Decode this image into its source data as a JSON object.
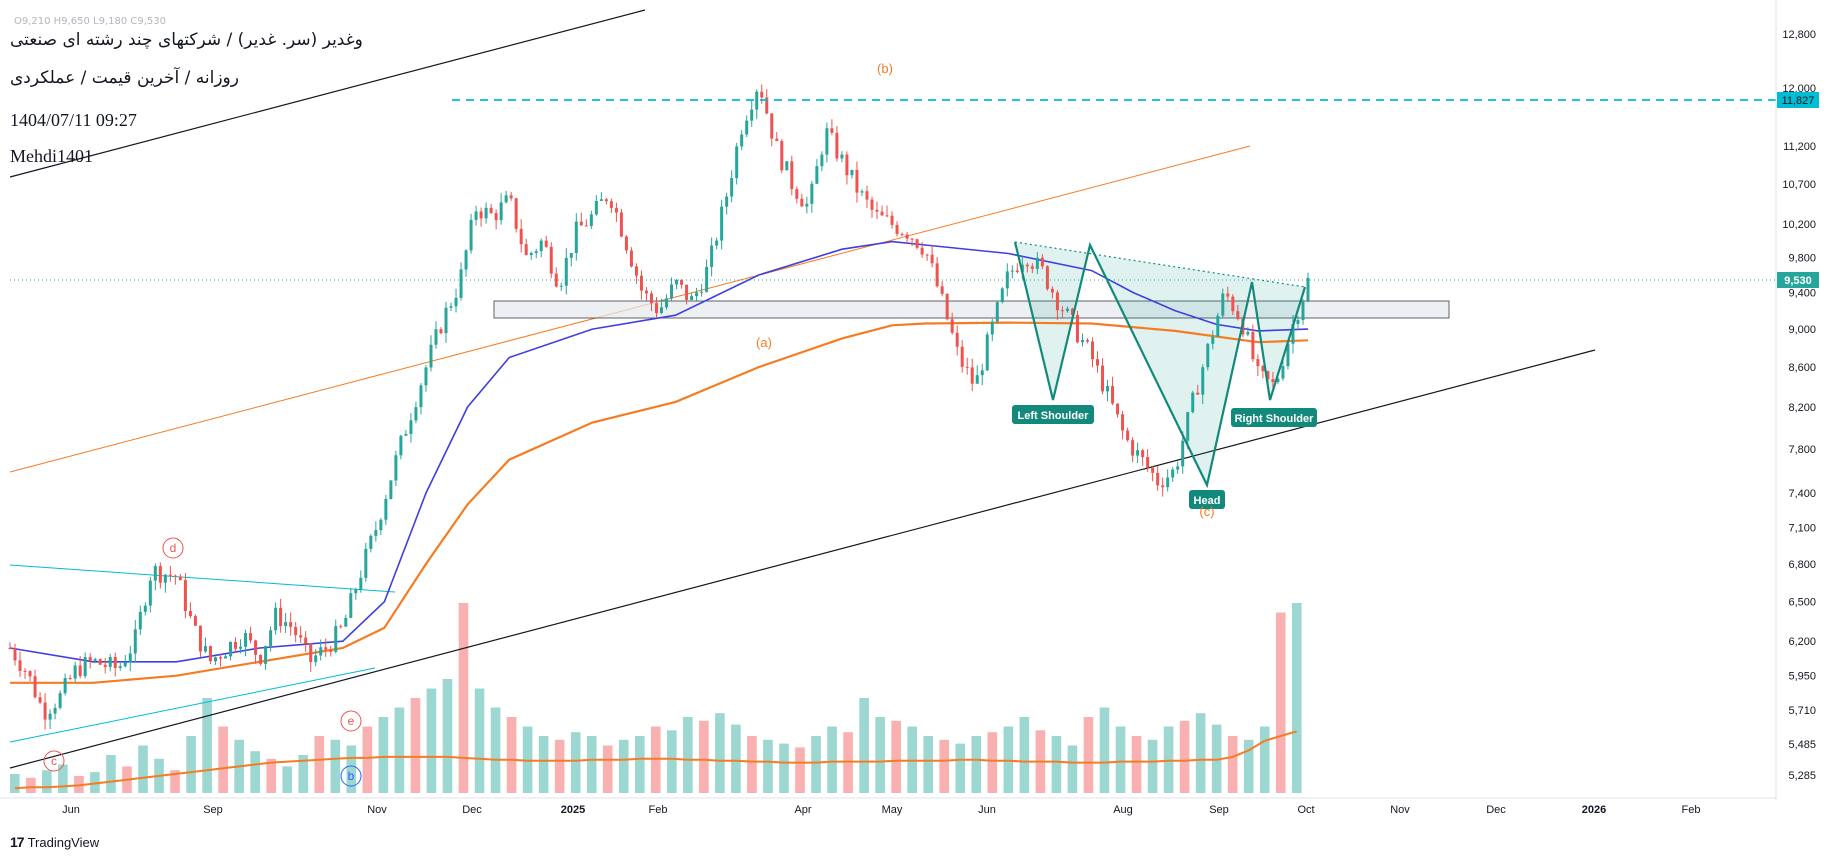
{
  "header": {
    "ohlc_text": "O9,210  H9,650  L9,180  C9,530",
    "title": "وغدیر (سر. غدیر) / شرکتهای چند رشته ای صنعتی",
    "subtitle": "روزانه / آخرین قیمت / عملکردی",
    "timestamp": "1404/07/11 09:27",
    "author": "Mehdi1401"
  },
  "footer": {
    "brand": "TradingView",
    "logo_text": "17"
  },
  "colors": {
    "up": "#26a69a",
    "down": "#ef5350",
    "ma_fast": "#3f3fe0",
    "ma_slow": "#f57c22",
    "price_tag": "#26a69a",
    "resistance": "#00bcd4",
    "pattern": "#12897b"
  },
  "chart_data": {
    "type": "candlestick",
    "y_axis": {
      "ticks": [
        12800,
        12000,
        11200,
        10700,
        10200,
        9800,
        9400,
        9000,
        8600,
        8200,
        7800,
        7400,
        7100,
        6800,
        6500,
        6200,
        5950,
        5710,
        5485,
        5285
      ],
      "labels": [
        "12,800",
        "12,000",
        "11,200",
        "10,700",
        "10,200",
        "9,800",
        "9,400",
        "9,000",
        "8,600",
        "8,200",
        "7,800",
        "7,400",
        "7,100",
        "6,800",
        "6,500",
        "6,200",
        "5,950",
        "5,710",
        "5,485",
        "5,285"
      ],
      "scale": "log"
    },
    "x_axis": {
      "labels": [
        "Jun",
        "Sep",
        "Nov",
        "Dec",
        "2025",
        "Feb",
        "Apr",
        "May",
        "Jun",
        "Aug",
        "Sep",
        "Oct",
        "Nov",
        "Dec",
        "2026",
        "Feb"
      ],
      "bold": [
        "2025",
        "2026"
      ]
    },
    "last_price": 9530,
    "last_price_label": "9,530",
    "resistance_price": 11827,
    "resistance_label": "11,827",
    "price_path": [
      [
        0,
        6150
      ],
      [
        0.02,
        5980
      ],
      [
        0.04,
        5700
      ],
      [
        0.06,
        5800
      ],
      [
        0.08,
        6000
      ],
      [
        0.1,
        6050
      ],
      [
        0.13,
        6000
      ],
      [
        0.15,
        6200
      ],
      [
        0.17,
        6750
      ],
      [
        0.2,
        6700
      ],
      [
        0.22,
        6300
      ],
      [
        0.24,
        6050
      ],
      [
        0.26,
        6150
      ],
      [
        0.28,
        6250
      ],
      [
        0.3,
        6080
      ],
      [
        0.32,
        6400
      ],
      [
        0.34,
        6300
      ],
      [
        0.36,
        6050
      ],
      [
        0.38,
        6150
      ],
      [
        0.4,
        6300
      ],
      [
        0.42,
        6700
      ],
      [
        0.44,
        7100
      ],
      [
        0.46,
        7600
      ],
      [
        0.48,
        8100
      ],
      [
        0.5,
        8600
      ],
      [
        0.52,
        9100
      ],
      [
        0.54,
        9500
      ],
      [
        0.56,
        10400
      ],
      [
        0.58,
        10300
      ],
      [
        0.6,
        10500
      ],
      [
        0.62,
        9800
      ],
      [
        0.64,
        10000
      ],
      [
        0.66,
        9500
      ],
      [
        0.68,
        10100
      ],
      [
        0.7,
        10300
      ],
      [
        0.72,
        10600
      ],
      [
        0.74,
        10000
      ],
      [
        0.76,
        9400
      ],
      [
        0.78,
        9200
      ],
      [
        0.8,
        9500
      ],
      [
        0.82,
        9300
      ],
      [
        0.84,
        9700
      ],
      [
        0.86,
        10500
      ],
      [
        0.88,
        11500
      ],
      [
        0.9,
        12100
      ],
      [
        0.92,
        11200
      ],
      [
        0.94,
        10700
      ],
      [
        0.96,
        10400
      ],
      [
        0.98,
        11400
      ],
      [
        1.0,
        11000
      ],
      [
        1.02,
        10600
      ],
      [
        1.04,
        10300
      ],
      [
        1.06,
        10200
      ],
      [
        1.08,
        10100
      ],
      [
        1.1,
        9900
      ],
      [
        1.12,
        9300
      ],
      [
        1.14,
        8700
      ],
      [
        1.16,
        8400
      ],
      [
        1.18,
        9000
      ],
      [
        1.2,
        9600
      ],
      [
        1.22,
        9850
      ],
      [
        1.24,
        9650
      ],
      [
        1.26,
        9300
      ],
      [
        1.28,
        9000
      ],
      [
        1.3,
        8700
      ],
      [
        1.32,
        8300
      ],
      [
        1.34,
        7900
      ],
      [
        1.36,
        7700
      ],
      [
        1.38,
        7500
      ],
      [
        1.4,
        7600
      ],
      [
        1.42,
        8200
      ],
      [
        1.44,
        8800
      ],
      [
        1.46,
        9400
      ],
      [
        1.48,
        9100
      ],
      [
        1.5,
        8500
      ],
      [
        1.52,
        8400
      ],
      [
        1.54,
        9000
      ],
      [
        1.56,
        9530
      ]
    ],
    "ma_fast": [
      [
        0,
        6150
      ],
      [
        0.1,
        6050
      ],
      [
        0.2,
        6050
      ],
      [
        0.3,
        6150
      ],
      [
        0.4,
        6200
      ],
      [
        0.45,
        6500
      ],
      [
        0.5,
        7400
      ],
      [
        0.55,
        8200
      ],
      [
        0.6,
        8700
      ],
      [
        0.7,
        9000
      ],
      [
        0.8,
        9150
      ],
      [
        0.9,
        9600
      ],
      [
        1.0,
        9900
      ],
      [
        1.06,
        9990
      ],
      [
        1.1,
        9950
      ],
      [
        1.2,
        9850
      ],
      [
        1.3,
        9650
      ],
      [
        1.35,
        9400
      ],
      [
        1.4,
        9200
      ],
      [
        1.45,
        9050
      ],
      [
        1.5,
        8980
      ],
      [
        1.56,
        9000
      ]
    ],
    "ma_slow": [
      [
        0,
        5900
      ],
      [
        0.1,
        5900
      ],
      [
        0.2,
        5950
      ],
      [
        0.3,
        6050
      ],
      [
        0.4,
        6150
      ],
      [
        0.45,
        6300
      ],
      [
        0.5,
        6800
      ],
      [
        0.55,
        7300
      ],
      [
        0.6,
        7700
      ],
      [
        0.7,
        8050
      ],
      [
        0.8,
        8250
      ],
      [
        0.9,
        8600
      ],
      [
        1.0,
        8900
      ],
      [
        1.06,
        9040
      ],
      [
        1.1,
        9060
      ],
      [
        1.2,
        9070
      ],
      [
        1.3,
        9060
      ],
      [
        1.4,
        8980
      ],
      [
        1.5,
        8860
      ],
      [
        1.56,
        8880
      ]
    ],
    "volume": [
      0.1,
      0.08,
      0.12,
      0.15,
      0.09,
      0.11,
      0.2,
      0.14,
      0.25,
      0.18,
      0.12,
      0.3,
      0.5,
      0.35,
      0.28,
      0.22,
      0.18,
      0.14,
      0.2,
      0.3,
      0.28,
      0.25,
      0.35,
      0.4,
      0.45,
      0.5,
      0.55,
      0.6,
      1.0,
      0.55,
      0.45,
      0.4,
      0.35,
      0.3,
      0.28,
      0.32,
      0.3,
      0.25,
      0.28,
      0.3,
      0.35,
      0.33,
      0.4,
      0.38,
      0.42,
      0.36,
      0.3,
      0.28,
      0.26,
      0.24,
      0.3,
      0.35,
      0.32,
      0.5,
      0.4,
      0.38,
      0.35,
      0.3,
      0.28,
      0.26,
      0.3,
      0.32,
      0.35,
      0.4,
      0.33,
      0.3,
      0.25,
      0.4,
      0.45,
      0.35,
      0.3,
      0.28,
      0.35,
      0.38,
      0.42,
      0.36,
      0.3,
      0.28,
      0.35,
      0.95,
      1.0
    ],
    "volume_ma": [
      0.05,
      0.06,
      0.06,
      0.07,
      0.08,
      0.1,
      0.12,
      0.14,
      0.16,
      0.18,
      0.2,
      0.22,
      0.24,
      0.26,
      0.28,
      0.3,
      0.32,
      0.33,
      0.34,
      0.35,
      0.36,
      0.37,
      0.37,
      0.38,
      0.38,
      0.38,
      0.38,
      0.38,
      0.37,
      0.36,
      0.35,
      0.35,
      0.34,
      0.34,
      0.34,
      0.34,
      0.35,
      0.35,
      0.35,
      0.36,
      0.36,
      0.36,
      0.35,
      0.35,
      0.34,
      0.34,
      0.33,
      0.33,
      0.32,
      0.32,
      0.32,
      0.33,
      0.33,
      0.33,
      0.33,
      0.34,
      0.34,
      0.34,
      0.34,
      0.35,
      0.35,
      0.34,
      0.34,
      0.33,
      0.33,
      0.33,
      0.32,
      0.32,
      0.32,
      0.33,
      0.33,
      0.33,
      0.34,
      0.34,
      0.35,
      0.35,
      0.38,
      0.45,
      0.55,
      0.6,
      0.65
    ],
    "annotations": {
      "pattern_labels": [
        "Left Shoulder",
        "Head",
        "Right Shoulder"
      ],
      "wave_labels": [
        "(a)",
        "(b)",
        "(c)"
      ],
      "circle_labels": [
        "c",
        "d",
        "e",
        "b"
      ]
    }
  }
}
